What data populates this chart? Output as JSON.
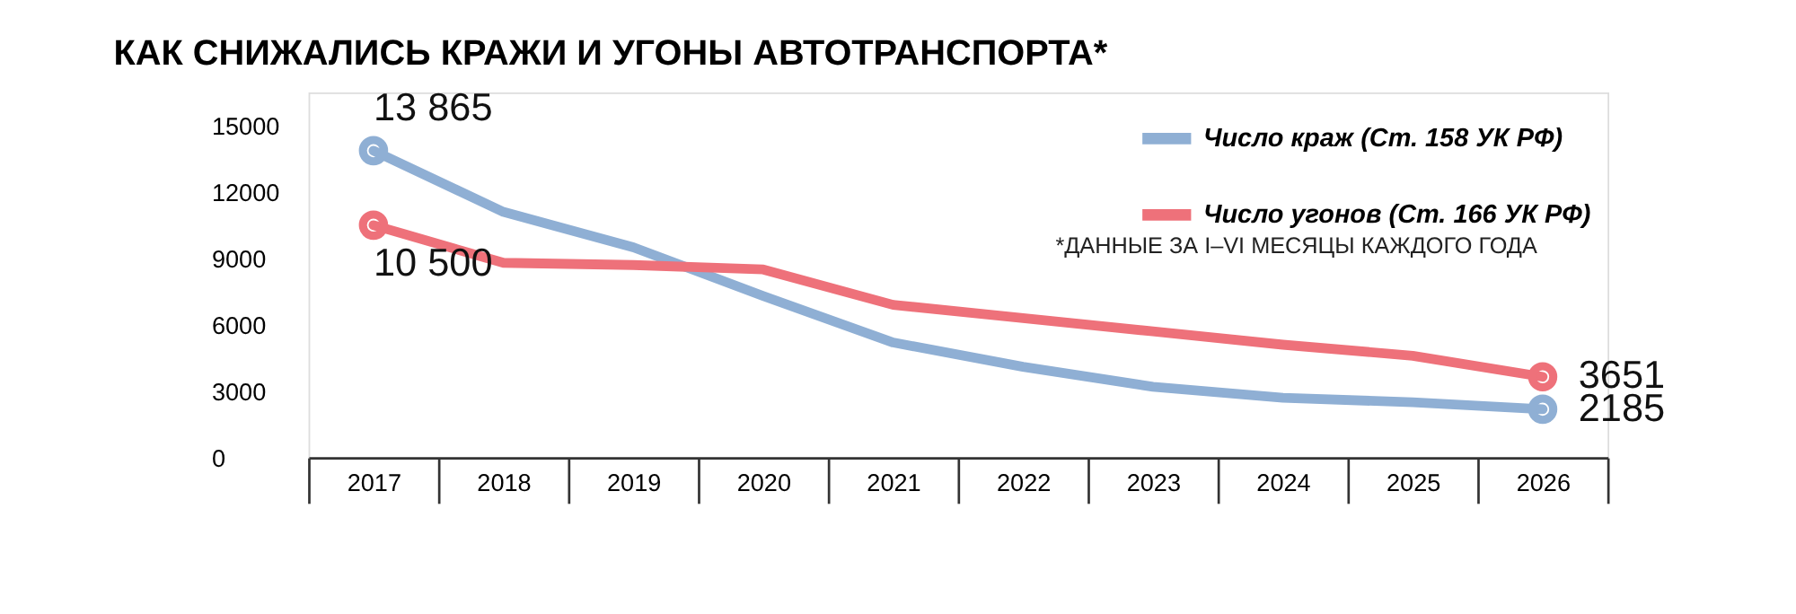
{
  "chart_data": {
    "type": "line",
    "title": "КАК СНИЖАЛИСЬ КРАЖИ И УГОНЫ АВТОТРАНСПОРТА*",
    "categories": [
      "2017",
      "2018",
      "2019",
      "2020",
      "2021",
      "2022",
      "2023",
      "2024",
      "2025",
      "2026"
    ],
    "series": [
      {
        "name": "Число краж (Ст. 158 УК РФ)",
        "color": "#8fafd4",
        "values": [
          13865,
          11100,
          9500,
          7300,
          5200,
          4100,
          3200,
          2700,
          2500,
          2185
        ],
        "value_labels": [
          "13 865",
          null,
          null,
          null,
          null,
          null,
          null,
          null,
          null,
          "2185"
        ]
      },
      {
        "name": "Число угонов (Ст. 166 УК РФ)",
        "color": "#ee717a",
        "values": [
          10500,
          8800,
          8700,
          8500,
          6900,
          6300,
          5700,
          5100,
          4600,
          3651
        ],
        "value_labels": [
          "10 500",
          null,
          null,
          null,
          null,
          null,
          null,
          null,
          null,
          "3651"
        ]
      }
    ],
    "ylim": [
      0,
      16500
    ],
    "yticks": [
      0,
      3000,
      6000,
      9000,
      12000,
      15000
    ],
    "grid": false,
    "legend": "top right",
    "annotations": [
      "*ДАННЫЕ ЗА I–VI МЕСЯЦЫ КАЖДОГО ГОДА"
    ]
  }
}
